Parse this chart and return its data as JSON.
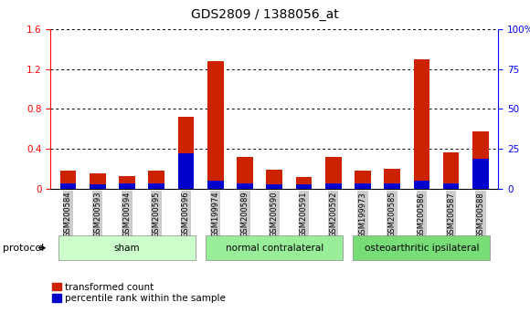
{
  "title": "GDS2809 / 1388056_at",
  "categories": [
    "GSM200584",
    "GSM200593",
    "GSM200594",
    "GSM200595",
    "GSM200596",
    "GSM199974",
    "GSM200589",
    "GSM200590",
    "GSM200591",
    "GSM200592",
    "GSM199973",
    "GSM200585",
    "GSM200586",
    "GSM200587",
    "GSM200588"
  ],
  "red_values": [
    0.18,
    0.16,
    0.13,
    0.18,
    0.72,
    1.28,
    0.32,
    0.19,
    0.12,
    0.32,
    0.18,
    0.2,
    1.3,
    0.37,
    0.58
  ],
  "blue_values": [
    0.055,
    0.045,
    0.055,
    0.055,
    0.36,
    0.08,
    0.055,
    0.045,
    0.045,
    0.055,
    0.055,
    0.055,
    0.08,
    0.055,
    0.3
  ],
  "ylim_left": [
    0,
    1.6
  ],
  "ylim_right": [
    0,
    100
  ],
  "yticks_left": [
    0,
    0.4,
    0.8,
    1.2,
    1.6
  ],
  "yticks_right": [
    0,
    25,
    50,
    75,
    100
  ],
  "ytick_labels_right": [
    "0",
    "25",
    "50",
    "75",
    "100%"
  ],
  "ytick_labels_left": [
    "0",
    "0.4",
    "0.8",
    "1.2",
    "1.6"
  ],
  "groups": [
    {
      "label": "sham",
      "start": 0,
      "end": 4
    },
    {
      "label": "normal contralateral",
      "start": 5,
      "end": 9
    },
    {
      "label": "osteoarthritic ipsilateral",
      "start": 10,
      "end": 14
    }
  ],
  "group_colors": [
    "#ccffcc",
    "#99ee99",
    "#77dd77"
  ],
  "bar_width": 0.55,
  "red_color": "#cc2200",
  "blue_color": "#0000cc",
  "background_color": "#ffffff",
  "tick_label_bg": "#cccccc",
  "protocol_label": "protocol",
  "legend_red": "transformed count",
  "legend_blue": "percentile rank within the sample",
  "title_fontsize": 10,
  "axis_fontsize": 7.5,
  "legend_fontsize": 7.5
}
